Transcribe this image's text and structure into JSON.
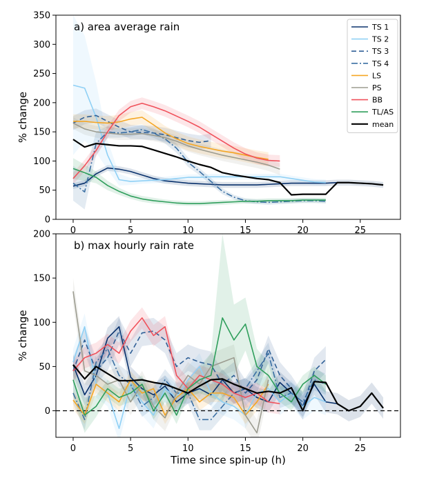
{
  "colors": {
    "TS 1": "#08306b",
    "TS 2": "#8fd0f5",
    "TS 3": "#2f5f96",
    "TS 4": "#3a6fa3",
    "LS": "#f5a623",
    "PS": "#9b9b8f",
    "BB": "#f0505a",
    "TL/AS": "#2e9e5b",
    "mean": "#000000"
  },
  "chart_data": [
    {
      "type": "line",
      "title": "a) area average rain",
      "xlabel": "",
      "ylabel": "% change",
      "xlim": [
        -1.5,
        28.5
      ],
      "ylim": [
        0,
        350
      ],
      "xticks": [
        0,
        5,
        10,
        15,
        20,
        25
      ],
      "yticks": [
        0,
        50,
        100,
        150,
        200,
        250,
        300,
        350
      ],
      "legend": [
        "TS 1",
        "TS 2",
        "TS 3",
        "TS 4",
        "LS",
        "PS",
        "BB",
        "TL/AS",
        "mean"
      ],
      "legend_position": "top-right",
      "series": [
        {
          "name": "TS 1",
          "dash": "solid",
          "x": [
            0,
            1,
            2,
            3,
            4,
            5,
            6,
            7,
            8,
            9,
            10,
            11,
            12,
            13,
            14,
            15,
            16,
            17,
            18,
            19,
            20,
            21,
            22,
            23,
            24,
            25,
            26,
            27
          ],
          "y": [
            57,
            62,
            78,
            88,
            86,
            82,
            76,
            70,
            66,
            64,
            62,
            61,
            60,
            59,
            59,
            59,
            59,
            60,
            61,
            62,
            62,
            62,
            62,
            63,
            63,
            62,
            61,
            59
          ],
          "band": 5
        },
        {
          "name": "TS 2",
          "dash": "solid",
          "x": [
            0,
            1,
            2,
            3,
            4,
            5,
            6,
            7,
            8,
            9,
            10,
            11,
            12,
            13,
            14,
            15,
            16,
            17,
            18,
            19,
            20,
            21,
            22
          ],
          "y": [
            230,
            225,
            175,
            110,
            68,
            65,
            66,
            67,
            68,
            70,
            72,
            72,
            73,
            73,
            73,
            73,
            73,
            73,
            73,
            70,
            67,
            64,
            63
          ],
          "band": [
            120,
            90,
            60,
            25,
            10,
            6,
            5,
            5,
            5,
            5,
            5,
            5,
            5,
            5,
            5,
            5,
            5,
            5,
            5,
            5,
            5,
            5,
            5
          ]
        },
        {
          "name": "TS 3",
          "dash": "dashed",
          "x": [
            0,
            1,
            2,
            3,
            4,
            5,
            6,
            7,
            8,
            9,
            10,
            11,
            12
          ],
          "y": [
            165,
            175,
            178,
            168,
            158,
            150,
            149,
            148,
            145,
            140,
            135,
            132,
            135
          ],
          "band": 12
        },
        {
          "name": "TS 4",
          "dash": "dashdot",
          "x": [
            0,
            1,
            2,
            3,
            4,
            5,
            6,
            7,
            8,
            9,
            10,
            11,
            12,
            13,
            14,
            15,
            16,
            17,
            18,
            19,
            20,
            21,
            22
          ],
          "y": [
            62,
            47,
            130,
            150,
            148,
            150,
            154,
            148,
            138,
            122,
            98,
            82,
            65,
            48,
            38,
            32,
            30,
            29,
            30,
            31,
            32,
            32,
            31
          ],
          "band": [
            30,
            30,
            20,
            10,
            8,
            8,
            8,
            8,
            8,
            8,
            8,
            6,
            6,
            5,
            4,
            4,
            4,
            4,
            4,
            4,
            4,
            4,
            4
          ]
        },
        {
          "name": "LS",
          "dash": "solid",
          "x": [
            0,
            1,
            2,
            3,
            4,
            5,
            6,
            7,
            8,
            9,
            10,
            11,
            12,
            13,
            14,
            15,
            16,
            17
          ],
          "y": [
            168,
            168,
            166,
            165,
            167,
            172,
            175,
            162,
            148,
            138,
            130,
            125,
            121,
            117,
            114,
            110,
            106,
            103
          ],
          "band": 12
        },
        {
          "name": "PS",
          "dash": "solid",
          "x": [
            0,
            1,
            2,
            3,
            4,
            5,
            6,
            7,
            8,
            9,
            10,
            11,
            12,
            13,
            14,
            15,
            16,
            17,
            18
          ],
          "y": [
            165,
            155,
            150,
            148,
            146,
            146,
            147,
            144,
            140,
            134,
            126,
            120,
            115,
            110,
            106,
            102,
            98,
            93,
            86
          ],
          "band": 10
        },
        {
          "name": "BB",
          "dash": "solid",
          "x": [
            0,
            1,
            2,
            3,
            4,
            5,
            6,
            7,
            8,
            9,
            10,
            11,
            12,
            13,
            14,
            15,
            16,
            17,
            18
          ],
          "y": [
            70,
            92,
            118,
            150,
            178,
            193,
            199,
            193,
            186,
            177,
            168,
            158,
            146,
            134,
            122,
            112,
            105,
            101,
            100
          ],
          "band": 10
        },
        {
          "name": "TL/AS",
          "dash": "solid",
          "x": [
            0,
            1,
            2,
            3,
            4,
            5,
            6,
            7,
            8,
            9,
            10,
            11,
            12,
            13,
            14,
            15,
            16,
            17,
            18,
            19,
            20,
            21,
            22
          ],
          "y": [
            87,
            80,
            72,
            58,
            48,
            40,
            35,
            32,
            30,
            28,
            27,
            27,
            28,
            29,
            30,
            31,
            31,
            32,
            32,
            32,
            33,
            33,
            33
          ],
          "band": [
            18,
            14,
            10,
            8,
            6,
            5,
            5,
            5,
            4,
            4,
            4,
            4,
            4,
            4,
            4,
            4,
            4,
            4,
            4,
            4,
            4,
            4,
            4
          ]
        },
        {
          "name": "mean",
          "dash": "solid",
          "x": [
            0,
            1,
            2,
            3,
            4,
            5,
            6,
            7,
            8,
            9,
            10,
            11,
            12,
            13,
            14,
            15,
            16,
            17,
            18,
            19,
            20,
            21,
            22,
            23,
            24,
            25,
            26,
            27
          ],
          "y": [
            137,
            124,
            130,
            128,
            126,
            126,
            125,
            119,
            113,
            107,
            100,
            94,
            89,
            80,
            76,
            73,
            70,
            68,
            63,
            42,
            43,
            43,
            43,
            63,
            63,
            62,
            61,
            59
          ],
          "band": 0
        }
      ]
    },
    {
      "type": "line",
      "title": "b) max hourly rain rate",
      "xlabel": "Time since spin-up (h)",
      "ylabel": "% change",
      "xlim": [
        -1.5,
        28.5
      ],
      "ylim": [
        -30,
        200
      ],
      "xticks": [
        0,
        5,
        10,
        15,
        20,
        25
      ],
      "yticks": [
        0,
        50,
        100,
        150,
        200
      ],
      "reference_line": 0,
      "series": [
        {
          "name": "TS 1",
          "dash": "solid",
          "x": [
            0,
            1,
            2,
            3,
            4,
            5,
            6,
            7,
            8,
            9,
            10,
            11,
            12,
            13,
            14,
            15,
            16,
            17,
            18,
            19,
            20,
            21,
            22,
            23,
            24,
            25,
            26,
            27
          ],
          "y": [
            52,
            18,
            40,
            82,
            95,
            38,
            25,
            18,
            28,
            10,
            20,
            25,
            18,
            35,
            20,
            25,
            15,
            10,
            32,
            20,
            5,
            30,
            10,
            8,
            0,
            5,
            20,
            3
          ],
          "band": 12
        },
        {
          "name": "TS 2",
          "dash": "solid",
          "x": [
            0,
            1,
            2,
            3,
            4,
            5,
            6,
            7,
            8,
            9,
            10,
            11,
            12,
            13,
            14,
            15,
            16,
            17,
            18,
            19,
            20,
            21,
            22
          ],
          "y": [
            55,
            95,
            30,
            20,
            -20,
            30,
            10,
            -5,
            25,
            15,
            35,
            50,
            20,
            10,
            5,
            -5,
            20,
            25,
            10,
            20,
            5,
            15,
            10
          ],
          "band": 15
        },
        {
          "name": "TS 3",
          "dash": "dashed",
          "x": [
            0,
            1,
            2,
            3,
            4,
            5,
            6,
            7,
            8,
            9,
            10,
            11,
            12,
            13,
            14,
            15,
            16,
            17,
            18,
            19,
            20,
            21,
            22
          ],
          "y": [
            45,
            80,
            45,
            60,
            90,
            65,
            88,
            90,
            80,
            50,
            60,
            55,
            52,
            30,
            40,
            20,
            35,
            70,
            40,
            25,
            5,
            45,
            58
          ],
          "band": 15
        },
        {
          "name": "TS 4",
          "dash": "dashdot",
          "x": [
            0,
            1,
            2,
            3,
            4,
            5,
            6,
            7,
            8,
            9,
            10,
            11,
            12,
            13,
            14,
            15,
            16,
            17,
            18,
            19,
            20,
            21,
            22
          ],
          "y": [
            20,
            -10,
            55,
            70,
            40,
            30,
            5,
            15,
            35,
            20,
            20,
            -10,
            -10,
            5,
            20,
            25,
            45,
            65,
            15,
            20,
            10,
            35,
            30
          ],
          "band": 12
        },
        {
          "name": "LS",
          "dash": "solid",
          "x": [
            0,
            1,
            2,
            3,
            4,
            5,
            6,
            7,
            8,
            9,
            10,
            11,
            12,
            13,
            14,
            15,
            16,
            17
          ],
          "y": [
            12,
            -5,
            30,
            20,
            10,
            35,
            20,
            25,
            -5,
            15,
            25,
            10,
            20,
            20,
            15,
            -5,
            10,
            30
          ],
          "band": 10
        },
        {
          "name": "PS",
          "dash": "solid",
          "x": [
            0,
            1,
            2,
            3,
            4,
            5,
            6,
            7,
            8,
            9,
            10,
            11,
            12,
            13,
            14,
            15,
            16,
            17
          ],
          "y": [
            135,
            45,
            40,
            30,
            35,
            10,
            30,
            5,
            -8,
            20,
            40,
            30,
            50,
            55,
            60,
            -5,
            -25,
            35
          ],
          "band": 15
        },
        {
          "name": "BB",
          "dash": "solid",
          "x": [
            0,
            1,
            2,
            3,
            4,
            5,
            6,
            7,
            8,
            9,
            10,
            11,
            12,
            13,
            14,
            15,
            16,
            17,
            18
          ],
          "y": [
            45,
            60,
            65,
            75,
            65,
            90,
            105,
            85,
            95,
            40,
            25,
            40,
            35,
            30,
            20,
            15,
            20,
            10,
            8
          ],
          "band": 12
        },
        {
          "name": "TL/AS",
          "dash": "solid",
          "x": [
            0,
            1,
            2,
            3,
            4,
            5,
            6,
            7,
            8,
            9,
            10,
            11,
            12,
            13,
            14,
            15,
            16,
            17,
            18,
            19,
            20,
            21,
            22
          ],
          "y": [
            35,
            -5,
            5,
            25,
            15,
            20,
            30,
            0,
            20,
            -5,
            25,
            35,
            40,
            105,
            80,
            98,
            50,
            40,
            20,
            10,
            30,
            40,
            30
          ],
          "band": [
            18,
            20,
            12,
            10,
            10,
            10,
            10,
            10,
            10,
            10,
            10,
            15,
            25,
            95,
            40,
            30,
            20,
            15,
            10,
            10,
            10,
            10,
            10
          ]
        },
        {
          "name": "mean",
          "dash": "solid",
          "x": [
            0,
            1,
            2,
            3,
            4,
            5,
            6,
            7,
            8,
            9,
            10,
            11,
            12,
            13,
            14,
            15,
            16,
            17,
            18,
            19,
            20,
            21,
            22,
            23,
            24,
            25,
            26,
            27
          ],
          "y": [
            52,
            36,
            50,
            42,
            34,
            34,
            35,
            32,
            30,
            25,
            20,
            28,
            35,
            36,
            30,
            25,
            20,
            22,
            20,
            26,
            0,
            33,
            32,
            8,
            0,
            5,
            20,
            3
          ],
          "band": 0
        }
      ]
    }
  ]
}
